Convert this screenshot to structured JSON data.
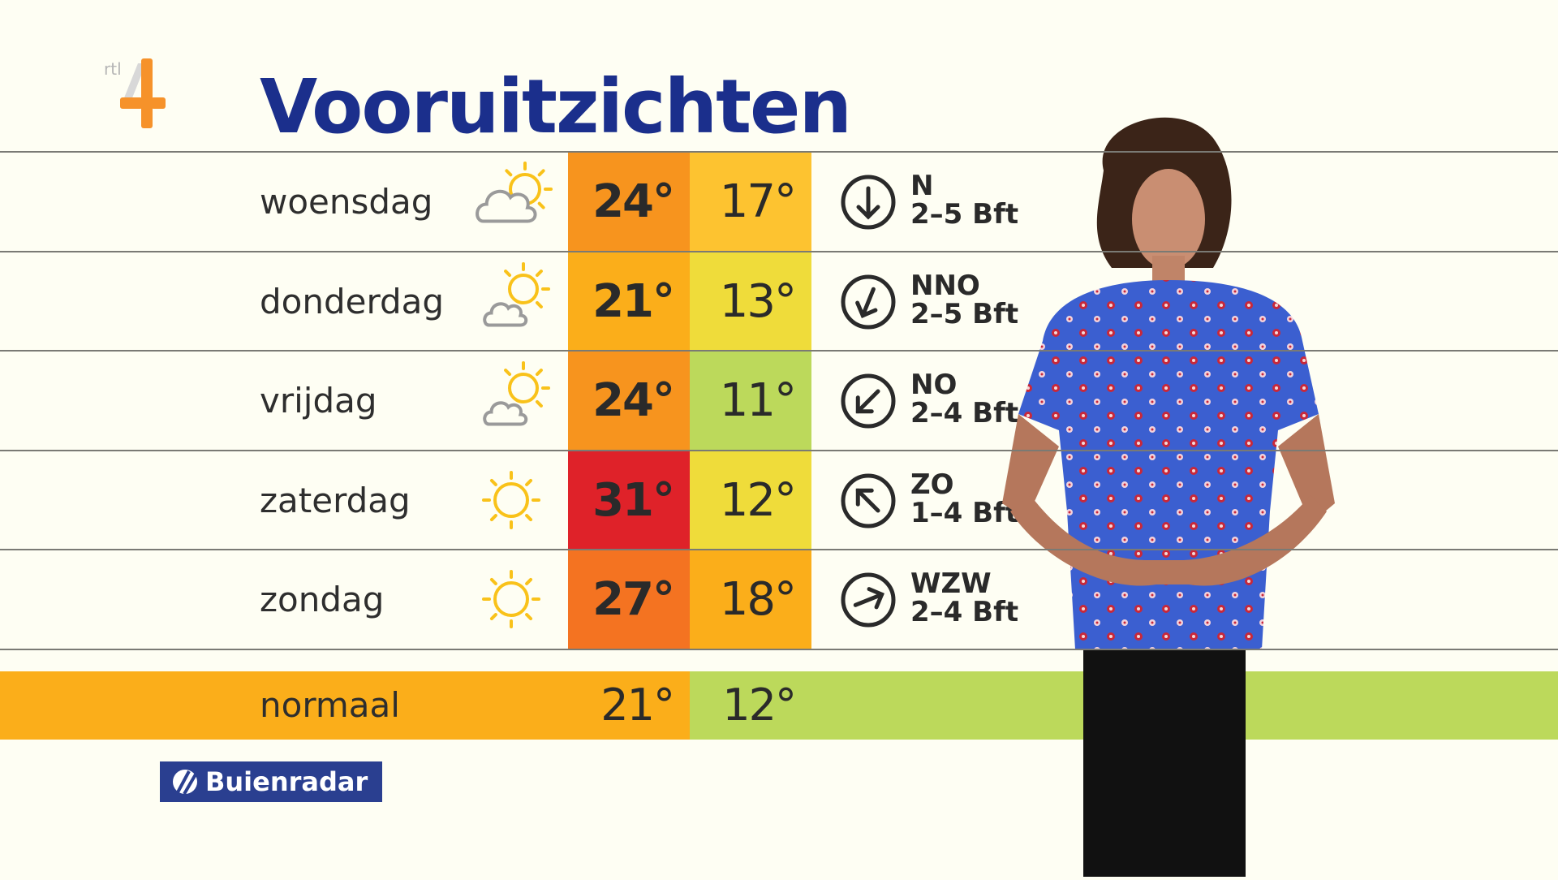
{
  "brand": {
    "channel_logo": "rtl 4",
    "partner_logo": "Buienradar"
  },
  "title": "Vooruitzichten",
  "forecast": [
    {
      "day": "woensdag",
      "icon": "partly-cloudy-icon",
      "high": "24°",
      "low": "17°",
      "high_color": "#f7941e",
      "low_color": "#fdc330",
      "wind_dir": "N",
      "wind_force": "2–5 Bft"
    },
    {
      "day": "donderdag",
      "icon": "sun-small-cloud-icon",
      "high": "21°",
      "low": "13°",
      "high_color": "#fbae1a",
      "low_color": "#efdc3a",
      "wind_dir": "NNO",
      "wind_force": "2–5 Bft"
    },
    {
      "day": "vrijdag",
      "icon": "sun-small-cloud-icon",
      "high": "24°",
      "low": "11°",
      "high_color": "#f7941e",
      "low_color": "#bcd95b",
      "wind_dir": "NO",
      "wind_force": "2–4 Bft"
    },
    {
      "day": "zaterdag",
      "icon": "sun-icon",
      "high": "31°",
      "low": "12°",
      "high_color": "#df2229",
      "low_color": "#efdc3a",
      "wind_dir": "ZO",
      "wind_force": "1–4 Bft"
    },
    {
      "day": "zondag",
      "icon": "sun-icon",
      "high": "27°",
      "low": "18°",
      "high_color": "#f47321",
      "low_color": "#fbae1a",
      "wind_dir": "WZW",
      "wind_force": "2–4 Bft"
    }
  ],
  "normal": {
    "label": "normaal",
    "high": "21°",
    "low": "12°",
    "high_color": "#fbae1a",
    "low_color": "#bcd95b"
  },
  "colors": {
    "title": "#1b2f8c",
    "background": "#fefef3",
    "sun": "#f9c21a",
    "cloud": "#9a9a9a"
  }
}
